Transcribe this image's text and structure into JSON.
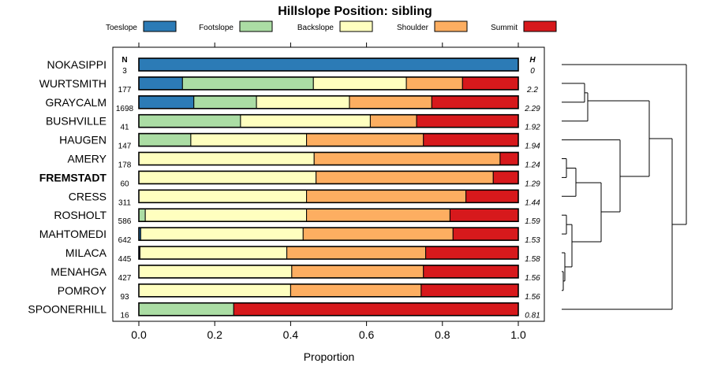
{
  "chart_data": {
    "type": "bar",
    "stacked": true,
    "orientation": "horizontal",
    "title": "Hillslope Position: sibling",
    "xlabel": "Proportion",
    "ylabel": "",
    "xlim": [
      0,
      1
    ],
    "xticks": [
      "0.0",
      "0.2",
      "0.4",
      "0.6",
      "0.8",
      "1.0"
    ],
    "tick_values": [
      0,
      0.2,
      0.4,
      0.6,
      0.8,
      1.0
    ],
    "n_header": "N",
    "h_header": "H",
    "legend": [
      {
        "name": "Toeslope",
        "color": "#2c7bb6"
      },
      {
        "name": "Footslope",
        "color": "#abdda4"
      },
      {
        "name": "Backslope",
        "color": "#ffffbf"
      },
      {
        "name": "Shoulder",
        "color": "#fdae61"
      },
      {
        "name": "Summit",
        "color": "#d7191c"
      }
    ],
    "legend_placement": "top",
    "categories": [
      "NOKASIPPI",
      "WURTSMITH",
      "GRAYCALM",
      "BUSHVILLE",
      "HAUGEN",
      "AMERY",
      "FREMSTADT",
      "CRESS",
      "ROSHOLT",
      "MAHTOMEDI",
      "MILACA",
      "MENAHGA",
      "POMROY",
      "SPOONERHILL"
    ],
    "highlight": "FREMSTADT",
    "n": [
      "3",
      "177",
      "1698",
      "41",
      "147",
      "178",
      "60",
      "311",
      "586",
      "642",
      "445",
      "427",
      "93",
      "16"
    ],
    "h": [
      "0",
      "2.2",
      "2.29",
      "1.92",
      "1.94",
      "1.24",
      "1.29",
      "1.44",
      "1.59",
      "1.53",
      "1.58",
      "1.56",
      "1.56",
      "0.81"
    ],
    "series": [
      {
        "name": "Toeslope",
        "values": [
          1.0,
          0.115,
          0.145,
          0,
          0,
          0,
          0,
          0,
          0,
          0.005,
          0.003,
          0,
          0,
          0
        ]
      },
      {
        "name": "Footslope",
        "values": [
          0,
          0.345,
          0.165,
          0.268,
          0.137,
          0,
          0,
          0,
          0.017,
          0,
          0,
          0,
          0,
          0.25
        ]
      },
      {
        "name": "Backslope",
        "values": [
          0,
          0.245,
          0.245,
          0.342,
          0.305,
          0.462,
          0.467,
          0.442,
          0.425,
          0.428,
          0.387,
          0.403,
          0.4,
          0
        ]
      },
      {
        "name": "Shoulder",
        "values": [
          0,
          0.148,
          0.217,
          0.122,
          0.308,
          0.49,
          0.467,
          0.42,
          0.378,
          0.395,
          0.366,
          0.347,
          0.344,
          0
        ]
      },
      {
        "name": "Summit",
        "values": [
          0,
          0.147,
          0.228,
          0.268,
          0.25,
          0.048,
          0.066,
          0.138,
          0.18,
          0.172,
          0.244,
          0.25,
          0.256,
          0.75
        ]
      }
    ],
    "dendrogram": {
      "note": "hierarchical clustering of series, leaves in row order",
      "leaf_order": [
        "NOKASIPPI",
        "WURTSMITH",
        "GRAYCALM",
        "BUSHVILLE",
        "HAUGEN",
        "AMERY",
        "FREMSTADT",
        "CRESS",
        "ROSHOLT",
        "MAHTOMEDI",
        "MILACA",
        "MENAHGA",
        "POMROY",
        "SPOONERHILL"
      ],
      "merges": [
        {
          "a": "WURTSMITH",
          "b": "GRAYCALM",
          "height": 0.1
        },
        {
          "a": "WURTSMITH|GRAYCALM",
          "b": "BUSHVILLE",
          "height": 0.16
        },
        {
          "a": "MENAHGA",
          "b": "POMROY",
          "height": 0.03
        },
        {
          "a": "AMERY",
          "b": "FREMSTADT",
          "height": 0.03
        },
        {
          "a": "ROSHOLT",
          "b": "MAHTOMEDI",
          "height": 0.03
        },
        {
          "a": "MILACA",
          "b": "MENAHGA|POMROY",
          "height": 0.05
        },
        {
          "a": "ROSHOLT|MAHTOMEDI",
          "b": "MILACA|MENAHGA|POMROY",
          "height": 0.08
        },
        {
          "a": "AMERY|FREMSTADT",
          "b": "CRESS",
          "height": 0.09
        },
        {
          "a": "AMERY|FREMSTADT|CRESS",
          "b": "ROSHOLT..POMROY",
          "height": 0.22
        },
        {
          "a": "HAUGEN",
          "b": "AMERY..POMROY",
          "height": 0.35
        },
        {
          "a": "WURTSMITH|GRAYCALM|BUSHVILLE",
          "b": "HAUGEN..POMROY",
          "height": 0.55
        },
        {
          "a": "WURTSMITH..POMROY",
          "b": "SPOONERHILL",
          "height": 0.58
        },
        {
          "a": "NOKASIPPI",
          "b": "WURTSMITH..SPOONERHILL",
          "height": 0.62
        }
      ]
    }
  }
}
